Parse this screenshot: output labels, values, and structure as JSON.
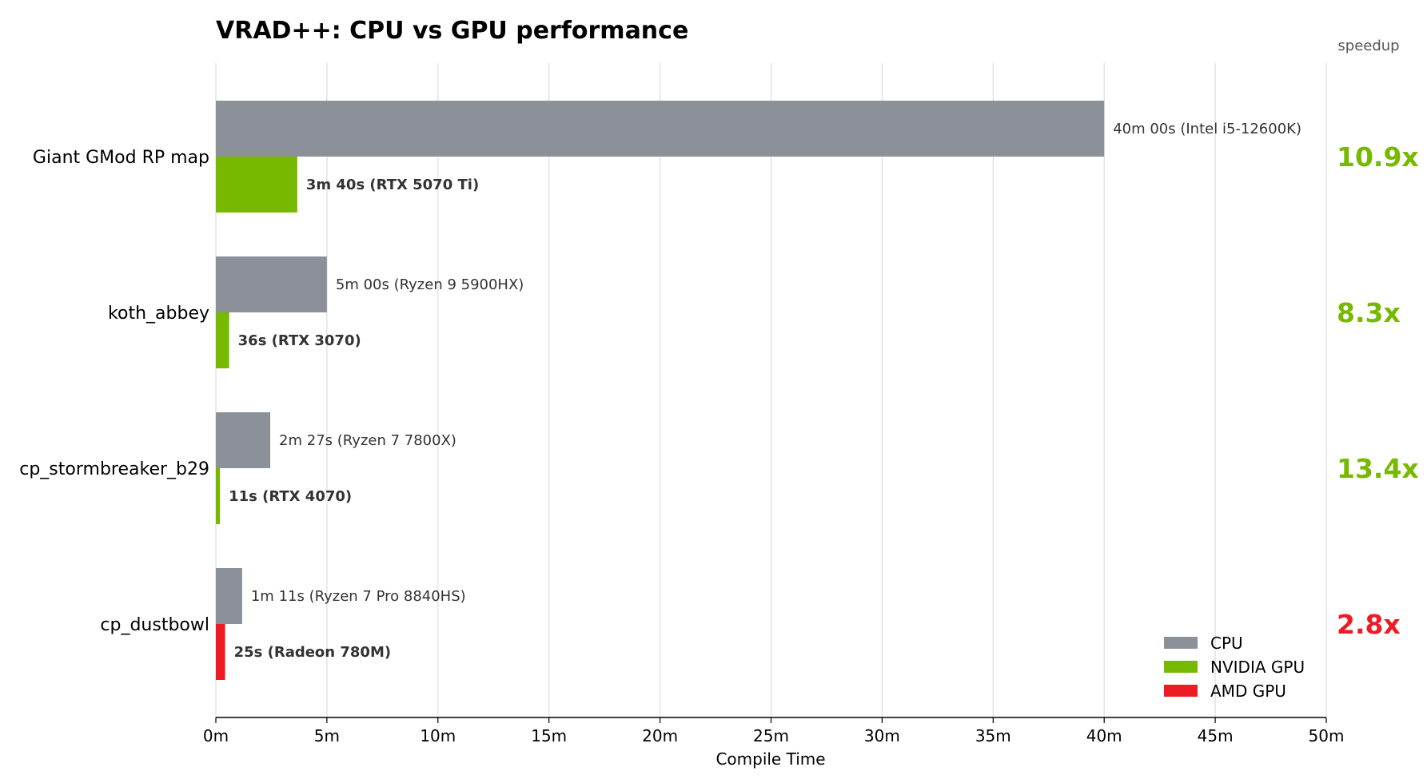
{
  "chart_data": {
    "type": "bar",
    "orientation": "horizontal",
    "title": "VRAD++: CPU vs GPU performance",
    "xlabel": "Compile Time",
    "speedup_header": "speedup",
    "xlim": [
      0,
      50
    ],
    "x_unit": "minutes",
    "xticks": [
      0,
      5,
      10,
      15,
      20,
      25,
      30,
      35,
      40,
      45,
      50
    ],
    "xtick_labels": [
      "0m",
      "5m",
      "10m",
      "15m",
      "20m",
      "25m",
      "30m",
      "35m",
      "40m",
      "45m",
      "50m"
    ],
    "grid": "vertical",
    "legend_placement": "bottom-right",
    "legend": [
      {
        "name": "CPU",
        "color": "#8c9099"
      },
      {
        "name": "NVIDIA GPU",
        "color": "#76b900"
      },
      {
        "name": "AMD GPU",
        "color": "#ed1c24"
      }
    ],
    "categories": [
      {
        "name": "Giant GMod RP map",
        "cpu_minutes": 40.0,
        "cpu_label": "40m 00s  (Intel i5-12600K)",
        "gpu_minutes": 3.667,
        "gpu_label": "3m 40s  (RTX 5070 Ti)",
        "gpu_vendor": "NVIDIA GPU",
        "gpu_color": "#76b900",
        "speedup": "10.9x"
      },
      {
        "name": "koth_abbey",
        "cpu_minutes": 5.0,
        "cpu_label": "5m 00s  (Ryzen 9 5900HX)",
        "gpu_minutes": 0.6,
        "gpu_label": "36s  (RTX 3070)",
        "gpu_vendor": "NVIDIA GPU",
        "gpu_color": "#76b900",
        "speedup": "8.3x"
      },
      {
        "name": "cp_stormbreaker_b29",
        "cpu_minutes": 2.45,
        "cpu_label": "2m 27s  (Ryzen 7 7800X)",
        "gpu_minutes": 0.183,
        "gpu_label": "11s  (RTX 4070)",
        "gpu_vendor": "NVIDIA GPU",
        "gpu_color": "#76b900",
        "speedup": "13.4x"
      },
      {
        "name": "cp_dustbowl",
        "cpu_minutes": 1.183,
        "cpu_label": "1m 11s  (Ryzen 7 Pro 8840HS)",
        "gpu_minutes": 0.417,
        "gpu_label": "25s  (Radeon 780M)",
        "gpu_vendor": "AMD GPU",
        "gpu_color": "#ed1c24",
        "speedup": "2.8x"
      }
    ]
  }
}
